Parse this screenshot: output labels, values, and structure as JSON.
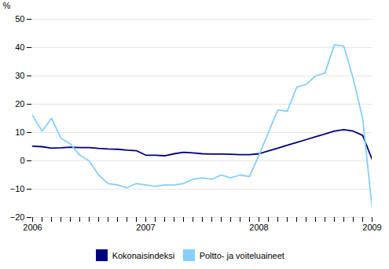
{
  "chart_data": {
    "type": "line",
    "ylabel": "%",
    "categories": [
      "2006",
      null,
      null,
      null,
      null,
      null,
      null,
      null,
      null,
      null,
      null,
      null,
      "2007",
      null,
      null,
      null,
      null,
      null,
      null,
      null,
      null,
      null,
      null,
      null,
      "2008",
      null,
      null,
      null,
      null,
      null,
      null,
      null,
      null,
      null,
      null,
      null,
      "2009"
    ],
    "ylim": [
      -20,
      50
    ],
    "yticks": [
      -20,
      -10,
      0,
      10,
      20,
      30,
      40,
      50
    ],
    "grid": true,
    "legend": "bottom",
    "series": [
      {
        "name": "Kokonaisindeksi",
        "color": "#000080",
        "values": [
          5.2,
          5.0,
          4.5,
          4.6,
          4.8,
          4.7,
          4.7,
          4.4,
          4.2,
          4.1,
          3.8,
          3.6,
          2.0,
          2.0,
          1.8,
          2.5,
          3.0,
          2.8,
          2.5,
          2.4,
          2.4,
          2.3,
          2.2,
          2.2,
          2.5,
          3.5,
          4.5,
          5.5,
          6.5,
          7.5,
          8.5,
          9.5,
          10.5,
          11.0,
          10.5,
          9.0,
          0.5
        ]
      },
      {
        "name": "Poltto- ja voiteluaineet",
        "color": "#87CEFA",
        "values": [
          16.0,
          10.5,
          15.0,
          8.0,
          6.0,
          2.0,
          0.0,
          -5.0,
          -8.0,
          -8.5,
          -9.5,
          -8.0,
          -8.5,
          -9.0,
          -8.5,
          -8.5,
          -8.0,
          -6.5,
          -6.0,
          -6.5,
          -5.0,
          -6.0,
          -5.0,
          -5.5,
          2.0,
          10.0,
          18.0,
          17.5,
          26.0,
          27.0,
          30.0,
          31.0,
          41.0,
          40.5,
          29.0,
          15.0,
          -16.5
        ]
      }
    ]
  }
}
